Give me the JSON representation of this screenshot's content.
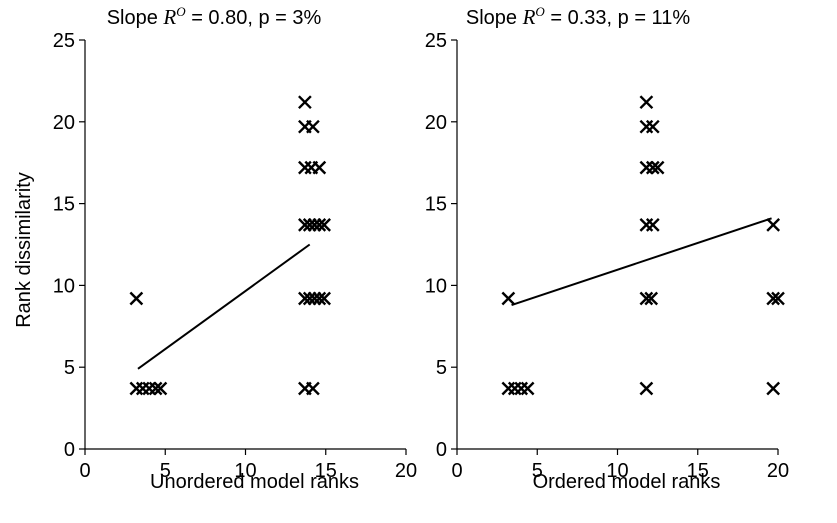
{
  "chart_data": [
    {
      "type": "scatter",
      "title": {
        "prefix": "Slope ",
        "symbol": "R",
        "superscript": "O",
        "suffix": " = 0.80, p = 3%"
      },
      "xlabel": "Unordered model ranks",
      "ylabel": "Rank dissimilarity",
      "xlim": [
        0,
        20
      ],
      "ylim": [
        0,
        25
      ],
      "xticks": [
        "0",
        "5",
        "10",
        "15",
        "20"
      ],
      "yticks": [
        "0",
        "5",
        "10",
        "15",
        "20",
        "25"
      ],
      "grid": false,
      "marker": "x",
      "points": [
        {
          "x": 3.2,
          "y": 9.2
        },
        {
          "x": 3.2,
          "y": 3.7
        },
        {
          "x": 3.6,
          "y": 3.7
        },
        {
          "x": 4.0,
          "y": 3.7
        },
        {
          "x": 4.4,
          "y": 3.7
        },
        {
          "x": 4.7,
          "y": 3.7
        },
        {
          "x": 13.7,
          "y": 21.2
        },
        {
          "x": 13.7,
          "y": 19.7
        },
        {
          "x": 14.2,
          "y": 19.7
        },
        {
          "x": 13.7,
          "y": 17.2
        },
        {
          "x": 14.1,
          "y": 17.2
        },
        {
          "x": 14.6,
          "y": 17.2
        },
        {
          "x": 13.7,
          "y": 13.7
        },
        {
          "x": 14.0,
          "y": 13.7
        },
        {
          "x": 14.3,
          "y": 13.7
        },
        {
          "x": 14.6,
          "y": 13.7
        },
        {
          "x": 14.9,
          "y": 13.7
        },
        {
          "x": 13.7,
          "y": 9.2
        },
        {
          "x": 14.0,
          "y": 9.2
        },
        {
          "x": 14.3,
          "y": 9.2
        },
        {
          "x": 14.6,
          "y": 9.2
        },
        {
          "x": 14.9,
          "y": 9.2
        },
        {
          "x": 13.7,
          "y": 3.7
        },
        {
          "x": 14.2,
          "y": 3.7
        }
      ],
      "fit_line": [
        {
          "x": 3.3,
          "y": 4.9
        },
        {
          "x": 14.0,
          "y": 12.5
        }
      ]
    },
    {
      "type": "scatter",
      "title": {
        "prefix": "Slope ",
        "symbol": "R",
        "superscript": "O",
        "suffix": " = 0.33, p = 11%"
      },
      "xlabel": "Ordered model ranks",
      "ylabel": "",
      "xlim": [
        0,
        20
      ],
      "ylim": [
        0,
        25
      ],
      "xticks": [
        "0",
        "5",
        "10",
        "15",
        "20"
      ],
      "yticks": [
        "0",
        "5",
        "10",
        "15",
        "20",
        "25"
      ],
      "grid": false,
      "marker": "x",
      "points": [
        {
          "x": 3.2,
          "y": 9.2
        },
        {
          "x": 3.2,
          "y": 3.7
        },
        {
          "x": 3.6,
          "y": 3.7
        },
        {
          "x": 4.0,
          "y": 3.7
        },
        {
          "x": 4.4,
          "y": 3.7
        },
        {
          "x": 11.8,
          "y": 21.2
        },
        {
          "x": 11.8,
          "y": 19.7
        },
        {
          "x": 12.2,
          "y": 19.7
        },
        {
          "x": 11.8,
          "y": 17.2
        },
        {
          "x": 12.2,
          "y": 17.2
        },
        {
          "x": 12.5,
          "y": 17.2
        },
        {
          "x": 11.8,
          "y": 13.7
        },
        {
          "x": 12.2,
          "y": 13.7
        },
        {
          "x": 11.8,
          "y": 9.2
        },
        {
          "x": 12.1,
          "y": 9.2
        },
        {
          "x": 11.8,
          "y": 3.7
        },
        {
          "x": 19.7,
          "y": 13.7
        },
        {
          "x": 19.7,
          "y": 9.2
        },
        {
          "x": 20.0,
          "y": 9.2
        },
        {
          "x": 19.7,
          "y": 3.7
        }
      ],
      "fit_line": [
        {
          "x": 3.4,
          "y": 8.8
        },
        {
          "x": 19.6,
          "y": 14.1
        }
      ]
    }
  ]
}
